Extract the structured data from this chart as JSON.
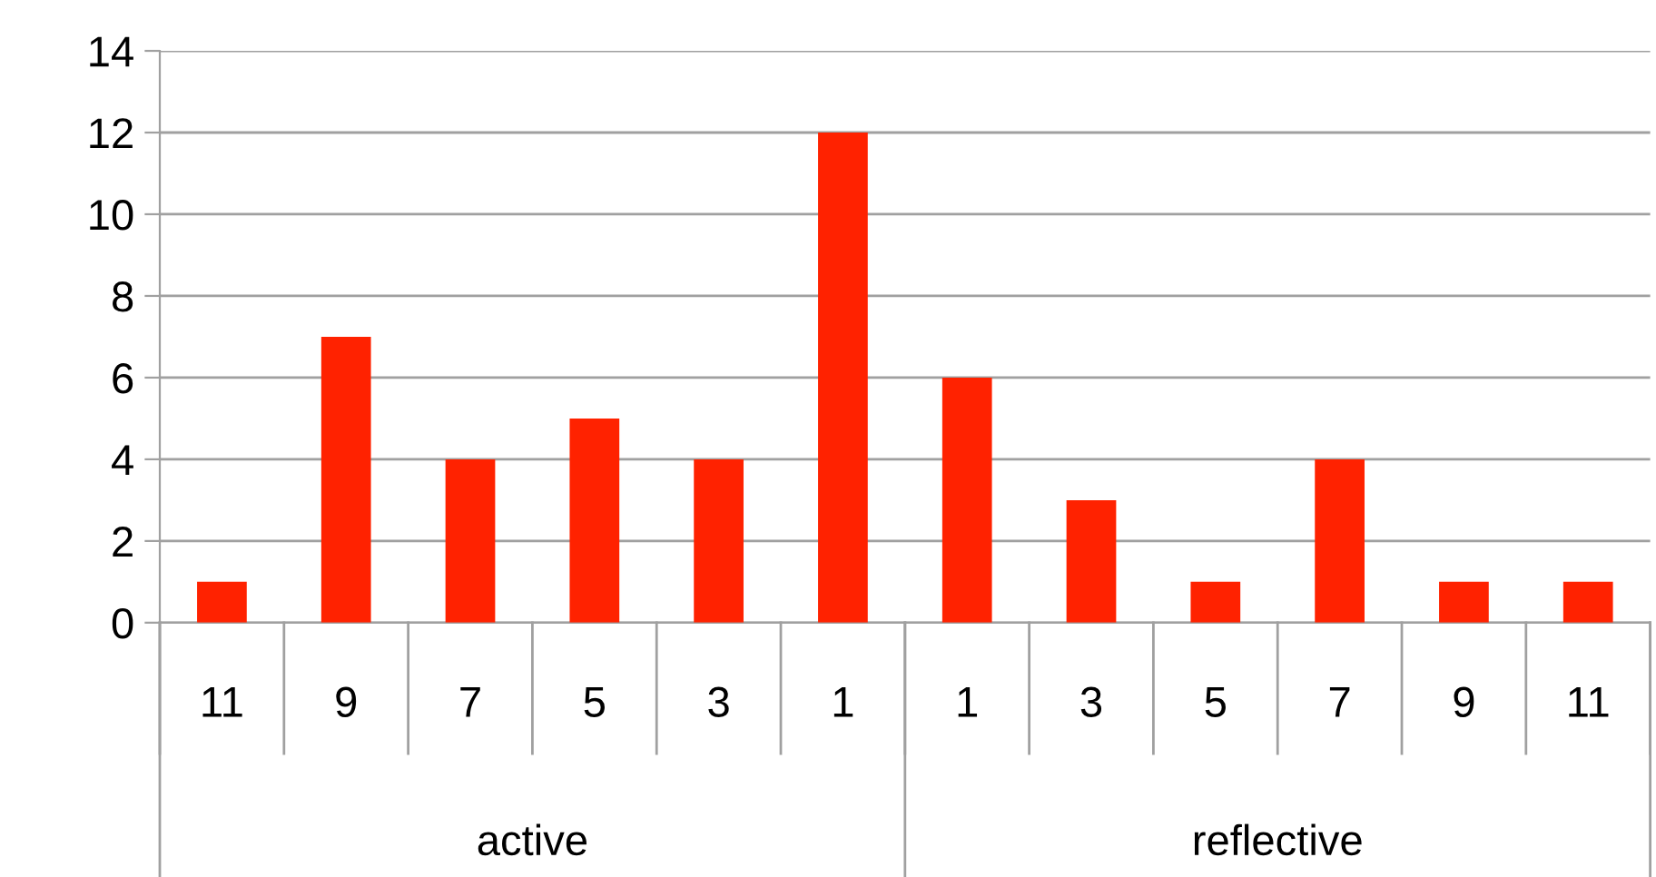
{
  "chart_data": {
    "type": "bar",
    "categories": [
      "11",
      "9",
      "7",
      "5",
      "3",
      "1",
      "1",
      "3",
      "5",
      "7",
      "9",
      "11"
    ],
    "values": [
      1,
      7,
      4,
      5,
      4,
      12,
      6,
      3,
      1,
      4,
      1,
      1
    ],
    "color": "#ff2200",
    "ylim": [
      0,
      14
    ],
    "yticks": [
      0,
      2,
      4,
      6,
      8,
      10,
      12,
      14
    ],
    "grid": "y",
    "annotations": [
      "active",
      "reflective"
    ]
  }
}
